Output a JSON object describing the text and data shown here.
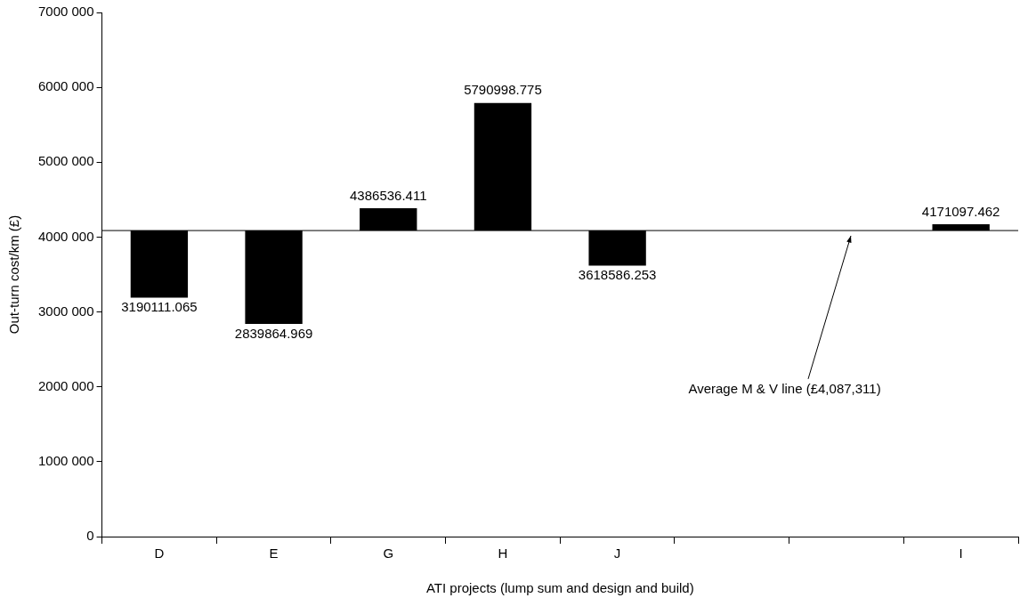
{
  "chart_data": {
    "type": "bar",
    "xlabel": "ATI projects (lump sum and design and build)",
    "ylabel": "Out-turn cost/km (£)",
    "categories": [
      "D",
      "E",
      "G",
      "H",
      "J",
      null,
      null,
      "I"
    ],
    "base": [
      4087311,
      4087311,
      4087311,
      4087311,
      4087311,
      null,
      null,
      4087311
    ],
    "values": [
      -897199.935,
      -1247446.031,
      299225.411,
      1703687.775,
      -468724.747,
      null,
      null,
      83786.462
    ],
    "value_labels": [
      "3190111.065",
      "2839864.969",
      "4386536.411",
      "5790998.775",
      "3618586.253",
      null,
      null,
      "4171097.462"
    ],
    "color": "#000000",
    "ylim": [
      0,
      7000000
    ],
    "yticks": [
      0,
      {
        "value": 1000000,
        "label": "1000 000"
      },
      {
        "value": 2000000,
        "label": "2000 000"
      },
      {
        "value": 3000000,
        "label": "3000 000"
      },
      {
        "value": 4000000,
        "label": "4000 000"
      },
      {
        "value": 5000000,
        "label": "5000 000"
      },
      {
        "value": 6000000,
        "label": "6000 000"
      },
      {
        "value": 7000000,
        "label": "7000 000"
      }
    ],
    "ref_lines": [
      {
        "axis": "y",
        "value": 4087311,
        "label": "Average M & V line (£4,087,311)",
        "color": "#000000"
      }
    ],
    "grid": false,
    "legend": false
  }
}
